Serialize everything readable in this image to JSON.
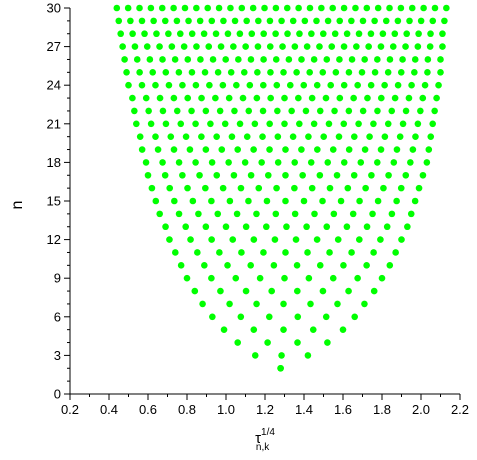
{
  "chart_data": {
    "type": "scatter",
    "title": "",
    "xlabel": {
      "base": "τ",
      "subscript": "n,k",
      "superscript": "1/4"
    },
    "ylabel": "n",
    "xlim": [
      0.2,
      2.2
    ],
    "ylim": [
      0,
      30
    ],
    "x_ticks": [
      0.2,
      0.4,
      0.6,
      0.8,
      1.0,
      1.2,
      1.4,
      1.6,
      1.8,
      2.0,
      2.2
    ],
    "x_tick_labels": [
      "0.2",
      "0.4",
      "0.6",
      "0.8",
      "1.0",
      "1.2",
      "1.4",
      "1.6",
      "1.8",
      "2.0",
      "2.2"
    ],
    "y_ticks": [
      0,
      3,
      6,
      9,
      12,
      15,
      18,
      21,
      24,
      27,
      30
    ],
    "y_tick_labels": [
      "0",
      "3",
      "6",
      "9",
      "12",
      "15",
      "18",
      "21",
      "24",
      "27",
      "30"
    ],
    "x_minor_ticks": true,
    "y_minor_ticks": true,
    "grid": false,
    "legend": "none",
    "marker_color": "#00ff00",
    "rows": [
      {
        "n": 2,
        "x_min": 1.28,
        "x_max": 1.28
      },
      {
        "n": 3,
        "x_min": 1.15,
        "x_max": 1.42
      },
      {
        "n": 4,
        "x_min": 1.06,
        "x_max": 1.52
      },
      {
        "n": 5,
        "x_min": 0.99,
        "x_max": 1.6
      },
      {
        "n": 6,
        "x_min": 0.93,
        "x_max": 1.66
      },
      {
        "n": 7,
        "x_min": 0.88,
        "x_max": 1.71
      },
      {
        "n": 8,
        "x_min": 0.84,
        "x_max": 1.76
      },
      {
        "n": 9,
        "x_min": 0.8,
        "x_max": 1.8
      },
      {
        "n": 10,
        "x_min": 0.77,
        "x_max": 1.84
      },
      {
        "n": 11,
        "x_min": 0.74,
        "x_max": 1.87
      },
      {
        "n": 12,
        "x_min": 0.71,
        "x_max": 1.9
      },
      {
        "n": 13,
        "x_min": 0.69,
        "x_max": 1.93
      },
      {
        "n": 14,
        "x_min": 0.66,
        "x_max": 1.95
      },
      {
        "n": 15,
        "x_min": 0.64,
        "x_max": 1.97
      },
      {
        "n": 16,
        "x_min": 0.62,
        "x_max": 1.99
      },
      {
        "n": 17,
        "x_min": 0.6,
        "x_max": 2.01
      },
      {
        "n": 18,
        "x_min": 0.59,
        "x_max": 2.03
      },
      {
        "n": 19,
        "x_min": 0.57,
        "x_max": 2.04
      },
      {
        "n": 20,
        "x_min": 0.56,
        "x_max": 2.05
      },
      {
        "n": 21,
        "x_min": 0.54,
        "x_max": 2.06
      },
      {
        "n": 22,
        "x_min": 0.53,
        "x_max": 2.07
      },
      {
        "n": 23,
        "x_min": 0.52,
        "x_max": 2.08
      },
      {
        "n": 24,
        "x_min": 0.5,
        "x_max": 2.09
      },
      {
        "n": 25,
        "x_min": 0.49,
        "x_max": 2.1
      },
      {
        "n": 26,
        "x_min": 0.48,
        "x_max": 2.1
      },
      {
        "n": 27,
        "x_min": 0.47,
        "x_max": 2.11
      },
      {
        "n": 28,
        "x_min": 0.46,
        "x_max": 2.11
      },
      {
        "n": 29,
        "x_min": 0.45,
        "x_max": 2.12
      },
      {
        "n": 30,
        "x_min": 0.44,
        "x_max": 2.13
      }
    ]
  }
}
